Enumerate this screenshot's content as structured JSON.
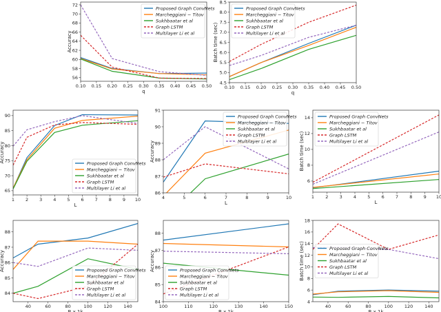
{
  "series_styles": [
    {
      "name": "Proposed Graph ConvNets",
      "color": "#1f77b4",
      "dashed": false
    },
    {
      "name": "Marcheggiani − Titov",
      "color": "#ff7f0e",
      "dashed": false
    },
    {
      "name": "Sukhbaatar et al",
      "color": "#2ca02c",
      "dashed": false
    },
    {
      "name": "Graph LSTM",
      "color": "#d62728",
      "dashed": true
    },
    {
      "name": "Multilayer Li et al",
      "color": "#9467bd",
      "dashed": true
    }
  ],
  "chart_data": [
    {
      "type": "line",
      "xlabel": "q",
      "ylabel": "Accuracy",
      "xlim": [
        0.1,
        0.5
      ],
      "ylim": [
        55.2,
        72.6
      ],
      "xticks": [
        "0.10",
        "0.15",
        "0.20",
        "0.25",
        "0.30",
        "0.35",
        "0.40",
        "0.45",
        "0.50"
      ],
      "yticks": [
        "56",
        "58",
        "60",
        "62",
        "64",
        "66",
        "68",
        "70",
        "72"
      ],
      "legend": "top-right",
      "grid": false,
      "x": [
        0.1,
        0.2,
        0.35,
        0.5
      ],
      "series": [
        {
          "name": "Proposed Graph ConvNets",
          "values": [
            60.4,
            58.0,
            56.9,
            57.0
          ]
        },
        {
          "name": "Marcheggiani − Titov",
          "values": [
            60.2,
            57.9,
            56.9,
            56.6
          ]
        },
        {
          "name": "Sukhbaatar et al",
          "values": [
            60.1,
            57.4,
            55.9,
            55.7
          ]
        },
        {
          "name": "Graph LSTM",
          "values": [
            65.3,
            58.3,
            55.9,
            55.8
          ]
        },
        {
          "name": "Multilayer Li et al",
          "values": [
            72.0,
            60.2,
            57.3,
            56.5
          ]
        }
      ]
    },
    {
      "type": "line",
      "xlabel": "q",
      "ylabel": "Batch time (sec)",
      "xlim": [
        0.1,
        0.5
      ],
      "ylim": [
        4.5,
        8.5
      ],
      "xticks": [
        "0.10",
        "0.15",
        "0.20",
        "0.25",
        "0.30",
        "0.35",
        "0.40",
        "0.45",
        "0.50"
      ],
      "yticks": [
        "4.5",
        "5.0",
        "5.5",
        "6.0",
        "6.5",
        "7.0",
        "7.5",
        "8.0",
        "8.5"
      ],
      "legend": "top-left",
      "grid": false,
      "x": [
        0.1,
        0.2,
        0.35,
        0.5
      ],
      "series": [
        {
          "name": "Proposed Graph ConvNets",
          "values": [
            4.8,
            5.5,
            6.45,
            7.35
          ]
        },
        {
          "name": "Marcheggiani − Titov",
          "values": [
            4.8,
            5.5,
            6.35,
            7.25
          ]
        },
        {
          "name": "Sukhbaatar et al",
          "values": [
            4.65,
            5.2,
            6.15,
            6.85
          ]
        },
        {
          "name": "Graph LSTM",
          "values": [
            5.55,
            6.4,
            7.5,
            8.35
          ]
        },
        {
          "name": "Multilayer Li et al",
          "values": [
            5.35,
            5.85,
            6.75,
            7.35
          ]
        }
      ]
    },
    {
      "type": "line",
      "xlabel": "L",
      "ylabel": "Accuracy",
      "xlim": [
        1,
        10
      ],
      "ylim": [
        63.6,
        91.8
      ],
      "xticks": [
        "1",
        "2",
        "3",
        "4",
        "5",
        "6",
        "7",
        "8",
        "9",
        "10"
      ],
      "yticks": [
        "65",
        "70",
        "75",
        "80",
        "85",
        "90"
      ],
      "legend": "lower-right",
      "grid": false,
      "x": [
        1,
        2,
        4,
        6,
        10
      ],
      "series": [
        {
          "name": "Proposed Graph ConvNets",
          "values": [
            65.8,
            76.0,
            86.7,
            90.3,
            90.2
          ]
        },
        {
          "name": "Marcheggiani − Titov",
          "values": [
            65.9,
            75.3,
            85.8,
            88.4,
            89.8
          ]
        },
        {
          "name": "Sukhbaatar et al",
          "values": [
            65.6,
            74.8,
            84.4,
            86.8,
            88.3
          ]
        },
        {
          "name": "Graph LSTM",
          "values": [
            73.5,
            82.8,
            86.9,
            87.7,
            87.1
          ]
        },
        {
          "name": "Multilayer Li et al",
          "values": [
            79.8,
            85.3,
            88.0,
            90.0,
            87.4
          ]
        }
      ]
    },
    {
      "type": "line",
      "xlabel": "L",
      "ylabel": "Accuracy",
      "xlim": [
        4,
        10
      ],
      "ylim": [
        86,
        91
      ],
      "xticks": [
        "4",
        "5",
        "6",
        "7",
        "8",
        "9",
        "10"
      ],
      "yticks": [
        "86",
        "87",
        "88",
        "89",
        "90",
        "91"
      ],
      "legend": "top-right",
      "grid": false,
      "x": [
        4,
        6,
        10
      ],
      "series": [
        {
          "name": "Proposed Graph ConvNets",
          "values": [
            86.65,
            90.35,
            90.2
          ]
        },
        {
          "name": "Marcheggiani − Titov",
          "values": [
            85.8,
            88.4,
            89.8
          ]
        },
        {
          "name": "Sukhbaatar et al",
          "values": [
            84.4,
            86.85,
            88.35
          ]
        },
        {
          "name": "Graph LSTM",
          "values": [
            86.95,
            87.75,
            87.15
          ]
        },
        {
          "name": "Multilayer Li et al",
          "values": [
            88.0,
            90.0,
            87.45
          ]
        }
      ]
    },
    {
      "type": "line",
      "xlabel": "L",
      "ylabel": "Batch time (sec)",
      "xlim": [
        1,
        10
      ],
      "ylim": [
        4.6,
        14.95
      ],
      "xticks": [
        "1",
        "2",
        "3",
        "4",
        "5",
        "6",
        "7",
        "8",
        "9",
        "10"
      ],
      "yticks": [
        "6",
        "8",
        "10",
        "12",
        "14"
      ],
      "legend": "top-left",
      "grid": false,
      "x": [
        1,
        10
      ],
      "series": [
        {
          "name": "Proposed Graph ConvNets",
          "values": [
            5.15,
            7.25
          ]
        },
        {
          "name": "Marcheggiani − Titov",
          "values": [
            5.2,
            6.9
          ]
        },
        {
          "name": "Sukhbaatar et al",
          "values": [
            5.05,
            6.2
          ]
        },
        {
          "name": "Graph LSTM",
          "values": [
            5.85,
            14.35
          ]
        },
        {
          "name": "Multilayer Li et al",
          "values": [
            5.6,
            12.2
          ]
        }
      ]
    },
    {
      "type": "line",
      "xlabel": "B x 1k",
      "ylabel": "Accuracy",
      "xlim": [
        25,
        150
      ],
      "ylim": [
        83.45,
        88.75
      ],
      "xticks": [
        "40",
        "60",
        "80",
        "100",
        "120",
        "140"
      ],
      "yticks": [
        "84",
        "85",
        "86",
        "87",
        "88"
      ],
      "legend": "lower-right",
      "grid": false,
      "x": [
        25,
        50,
        100,
        150
      ],
      "series": [
        {
          "name": "Proposed Graph ConvNets",
          "values": [
            86.3,
            87.2,
            87.6,
            88.55
          ]
        },
        {
          "name": "Marcheggiani − Titov",
          "values": [
            85.55,
            87.4,
            87.4,
            87.2
          ]
        },
        {
          "name": "Sukhbaatar et al",
          "values": [
            84.0,
            84.45,
            86.25,
            85.55
          ]
        },
        {
          "name": "Graph LSTM",
          "values": [
            84.0,
            83.65,
            84.45,
            87.2
          ]
        },
        {
          "name": "Multilayer Li et al",
          "values": [
            86.0,
            85.75,
            86.95,
            86.8
          ]
        }
      ]
    },
    {
      "type": "line",
      "xlabel": "B x 1k",
      "ylabel": "Accuracy",
      "xlim": [
        100,
        150
      ],
      "ylim": [
        84,
        88.75
      ],
      "xticks": [
        "100",
        "110",
        "120",
        "130",
        "140",
        "150"
      ],
      "yticks": [
        "84",
        "85",
        "86",
        "87",
        "88"
      ],
      "legend": "lower-left",
      "grid": false,
      "x": [
        100,
        150
      ],
      "series": [
        {
          "name": "Proposed Graph ConvNets",
          "values": [
            87.6,
            88.55
          ]
        },
        {
          "name": "Marcheggiani − Titov",
          "values": [
            87.4,
            87.2
          ]
        },
        {
          "name": "Sukhbaatar et al",
          "values": [
            86.25,
            85.55
          ]
        },
        {
          "name": "Graph LSTM",
          "values": [
            84.45,
            87.2
          ]
        },
        {
          "name": "Multilayer Li et al",
          "values": [
            86.95,
            86.8
          ]
        }
      ]
    },
    {
      "type": "line",
      "xlabel": "B x 1k",
      "ylabel": "Batch time (sec)",
      "xlim": [
        25,
        150
      ],
      "ylim": [
        4,
        18
      ],
      "xticks": [
        "40",
        "60",
        "80",
        "100",
        "120",
        "140"
      ],
      "yticks": [
        "4",
        "6",
        "8",
        "10",
        "12",
        "14",
        "16",
        "18"
      ],
      "legend": "center-left",
      "grid": false,
      "x": [
        25,
        50,
        100,
        150
      ],
      "series": [
        {
          "name": "Proposed Graph ConvNets",
          "values": [
            5.2,
            5.8,
            6.0,
            5.8
          ]
        },
        {
          "name": "Marcheggiani − Titov",
          "values": [
            5.3,
            5.7,
            5.9,
            5.6
          ]
        },
        {
          "name": "Sukhbaatar et al",
          "values": [
            4.8,
            4.75,
            4.9,
            4.65
          ]
        },
        {
          "name": "Graph LSTM",
          "values": [
            13.0,
            17.4,
            13.0,
            15.5
          ]
        },
        {
          "name": "Multilayer Li et al",
          "values": [
            13.3,
            13.4,
            13.0,
            11.4
          ]
        }
      ]
    }
  ]
}
